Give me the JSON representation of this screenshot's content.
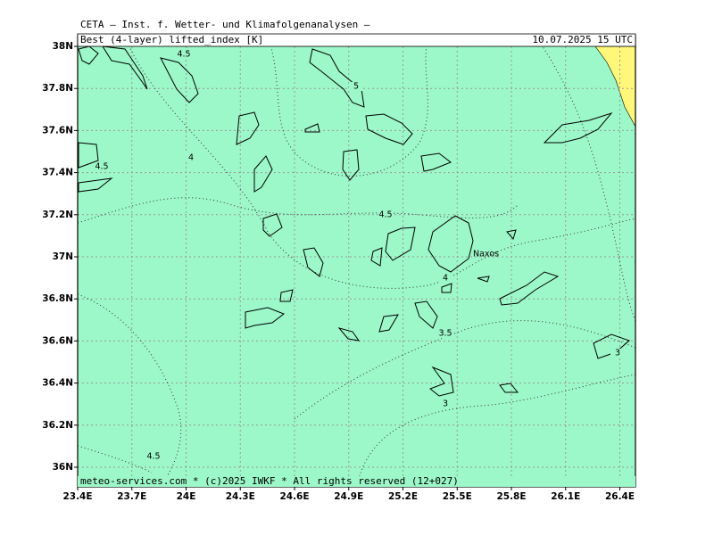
{
  "header": {
    "title": "CETA — Inst. f. Wetter- und Klimafolgenanalysen —",
    "variable": "Best (4-layer) lifted_index [K]",
    "valid_time": "10.07.2025 15 UTC"
  },
  "map": {
    "lat_labels": [
      "38N",
      "37.8N",
      "37.6N",
      "37.4N",
      "37.2N",
      "37N",
      "36.8N",
      "36.6N",
      "36.4N",
      "36.2N",
      "36N"
    ],
    "lon_labels": [
      "23.4E",
      "23.7E",
      "24E",
      "24.3E",
      "24.6E",
      "24.9E",
      "25.2E",
      "25.5E",
      "25.8E",
      "26.1E",
      "26.4E"
    ],
    "contour_labels": [
      "4.5",
      "5",
      "4.5",
      "4",
      "4.5",
      "4",
      "3.5",
      "3",
      "3",
      "4.5"
    ],
    "place_labels": [
      "Naxos"
    ]
  },
  "footer": {
    "text": "meteo-services.com * (c)2025 IWKF * All rights reserved (12+027)"
  }
}
